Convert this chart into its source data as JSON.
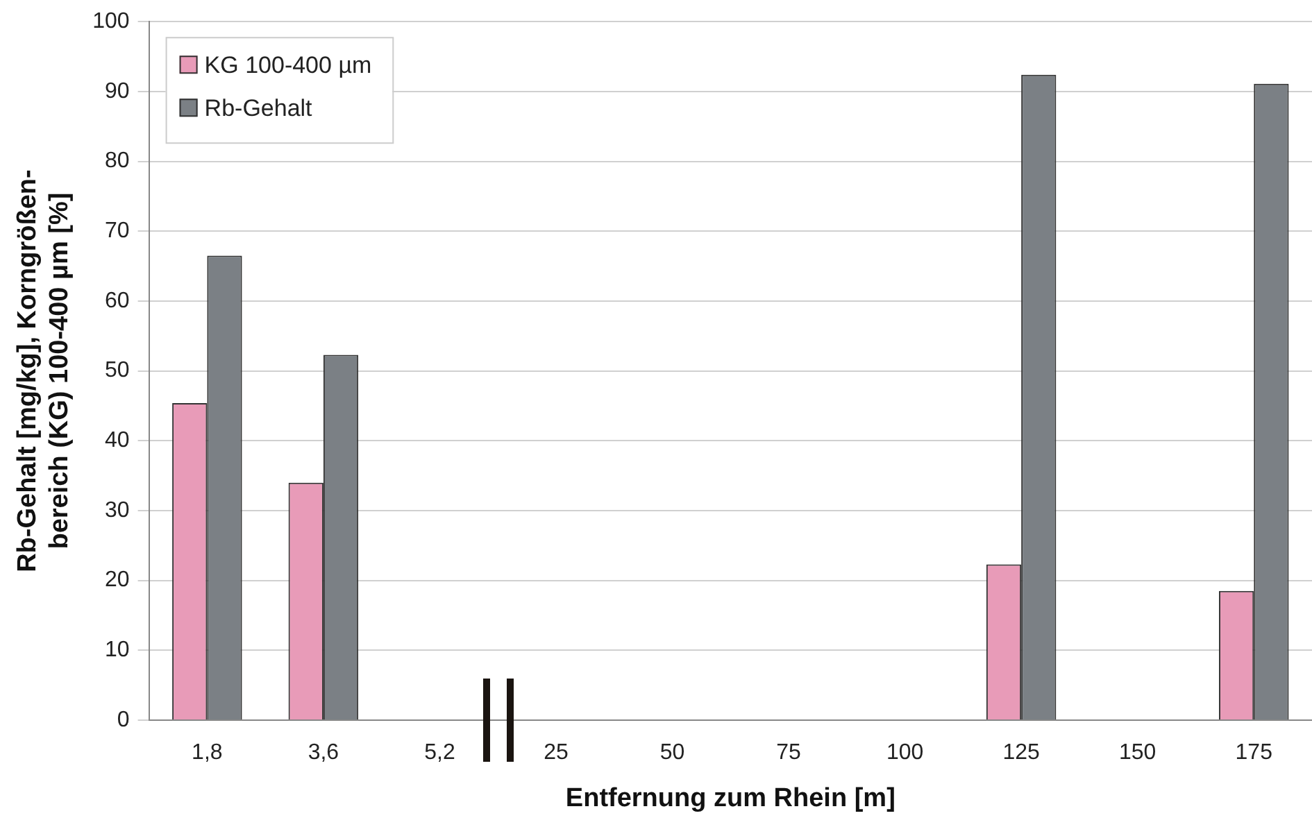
{
  "chart_data": {
    "type": "bar",
    "xlabel": "Entfernung zum Rhein [m]",
    "ylabel": "Rb-Gehalt [mg/kg], Korngrößen-\nbereich (KG) 100-400 µm [%]",
    "categories": [
      "1,8",
      "3,6",
      "5,2",
      "25",
      "50",
      "75",
      "100",
      "125",
      "150",
      "175"
    ],
    "series": [
      {
        "name": "KG 100-400 µm",
        "color": "#e89bb8",
        "values": [
          45.4,
          34.0,
          null,
          null,
          null,
          null,
          null,
          22.3,
          null,
          18.5
        ]
      },
      {
        "name": "Rb-Gehalt",
        "color": "#7b8085",
        "values": [
          66.5,
          52.3,
          null,
          null,
          null,
          null,
          null,
          92.4,
          null,
          91.1
        ]
      }
    ],
    "ylim": [
      0,
      100
    ],
    "yticks": [
      0,
      10,
      20,
      30,
      40,
      50,
      60,
      70,
      80,
      90,
      100
    ],
    "grid": "y",
    "legend": "top left"
  }
}
